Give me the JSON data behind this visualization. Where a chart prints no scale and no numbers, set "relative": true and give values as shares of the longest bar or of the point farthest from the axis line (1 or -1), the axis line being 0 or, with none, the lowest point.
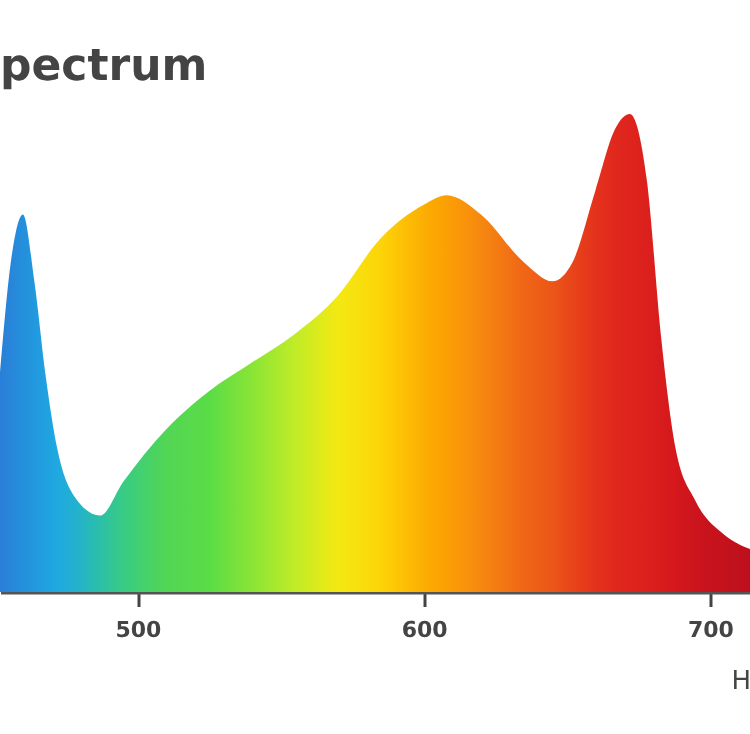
{
  "chart_data": {
    "type": "area",
    "title": "pectrum",
    "xlabel": "H",
    "relative": true,
    "x": [
      452,
      456,
      460,
      464,
      468,
      472,
      478,
      487,
      495,
      510,
      525,
      540,
      555,
      570,
      585,
      600,
      608,
      620,
      635,
      645,
      652,
      660,
      667,
      672,
      678,
      683,
      688,
      695,
      705,
      714
    ],
    "values": [
      0.46,
      0.7,
      0.79,
      0.65,
      0.45,
      0.3,
      0.2,
      0.16,
      0.23,
      0.34,
      0.42,
      0.48,
      0.54,
      0.62,
      0.74,
      0.81,
      0.83,
      0.79,
      0.69,
      0.65,
      0.69,
      0.84,
      0.97,
      1.0,
      0.86,
      0.53,
      0.3,
      0.19,
      0.12,
      0.09
    ],
    "colors": [
      "#2a7fd8",
      "#2886da",
      "#248fdc",
      "#2298de",
      "#20a1e0",
      "#1fa9e0",
      "#22b0d0",
      "#2cbfa8",
      "#38cc84",
      "#52d654",
      "#5adc46",
      "#8ae436",
      "#c0ec28",
      "#f3e912",
      "#fdd408",
      "#fcae02",
      "#fba004",
      "#f68810",
      "#f06616",
      "#ec5618",
      "#e8441a",
      "#e4321c",
      "#e0281c",
      "#de241c",
      "#dc201c",
      "#d81c1c",
      "#d4181c",
      "#cc141c",
      "#c4121c",
      "#bc101c"
    ],
    "xlim": [
      452,
      714
    ],
    "xticks": [
      500,
      600,
      700
    ],
    "grid": false
  }
}
